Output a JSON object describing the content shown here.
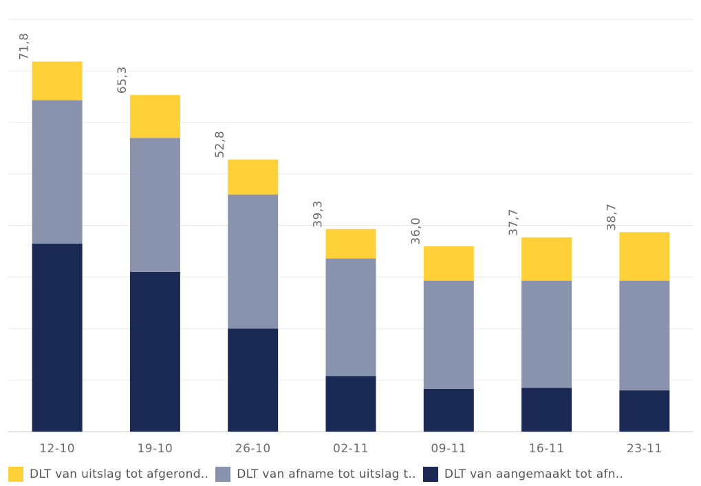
{
  "chart_data": {
    "type": "bar",
    "stacked": true,
    "categories": [
      "12-10",
      "19-10",
      "26-10",
      "02-11",
      "09-11",
      "16-11",
      "23-11"
    ],
    "series": [
      {
        "name": "DLT van aangemaakt tot afn..",
        "color": "#1b2a54",
        "values": [
          36.5,
          31.0,
          20.0,
          10.8,
          8.3,
          8.5,
          8.0
        ]
      },
      {
        "name": "DLT van afname tot uitslag t..",
        "color": "#8a93ad",
        "values": [
          27.8,
          26.0,
          26.0,
          22.8,
          21.0,
          20.8,
          21.3
        ]
      },
      {
        "name": "DLT van uitslag tot afgerond..",
        "color": "#fdd137",
        "values": [
          7.5,
          8.3,
          6.8,
          5.7,
          6.7,
          8.4,
          9.4
        ]
      }
    ],
    "totals": [
      "71,8",
      "65,3",
      "52,8",
      "39,3",
      "36,0",
      "37,7",
      "38,7"
    ],
    "ylim": [
      0,
      80
    ],
    "grid": true,
    "legend_position": "bottom",
    "legend_order": [
      2,
      1,
      0
    ]
  }
}
